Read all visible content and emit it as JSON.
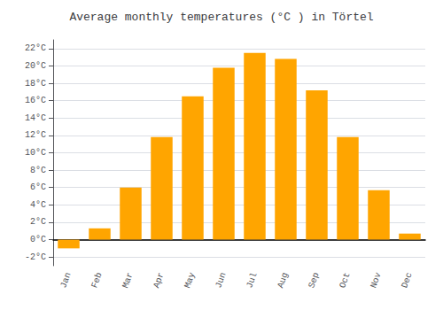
{
  "chart_data": {
    "type": "bar",
    "title": "Average monthly temperatures (°C ) in Törtel",
    "categories": [
      "Jan",
      "Feb",
      "Mar",
      "Apr",
      "May",
      "Jun",
      "Jul",
      "Aug",
      "Sep",
      "Oct",
      "Nov",
      "Dec"
    ],
    "values": [
      -1.0,
      1.3,
      6.0,
      11.8,
      16.5,
      19.8,
      21.5,
      20.8,
      17.2,
      11.8,
      5.7,
      0.7
    ],
    "color": "#FFA500",
    "ylim": [
      -3,
      23
    ],
    "yticks": [
      {
        "value": -2,
        "label": "-2°C"
      },
      {
        "value": 0,
        "label": "0°C"
      },
      {
        "value": 2,
        "label": "2°C"
      },
      {
        "value": 4,
        "label": "4°C"
      },
      {
        "value": 6,
        "label": "6°C"
      },
      {
        "value": 8,
        "label": "8°C"
      },
      {
        "value": 10,
        "label": "10°C"
      },
      {
        "value": 12,
        "label": "12°C"
      },
      {
        "value": 14,
        "label": "14°C"
      },
      {
        "value": 16,
        "label": "16°C"
      },
      {
        "value": 18,
        "label": "18°C"
      },
      {
        "value": 20,
        "label": "20°C"
      },
      {
        "value": 22,
        "label": "22°C"
      }
    ],
    "grid": true
  }
}
